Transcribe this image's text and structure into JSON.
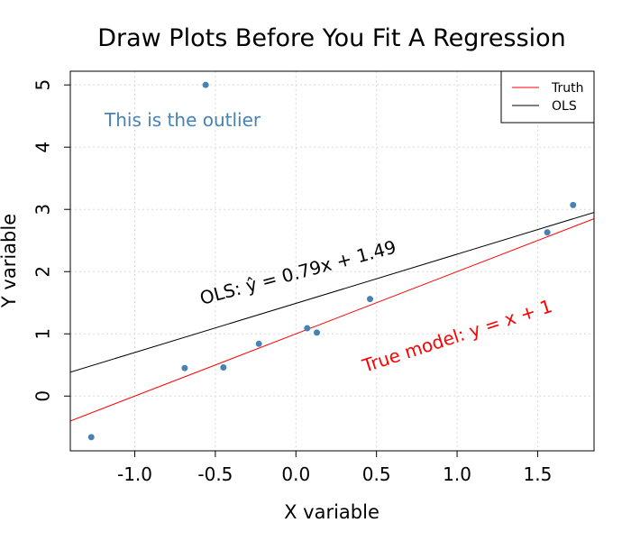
{
  "chart_data": {
    "type": "scatter",
    "title": "Draw Plots Before You Fit A Regression",
    "xlabel": "X variable",
    "ylabel": "Y variable",
    "xlim": [
      -1.4,
      1.85
    ],
    "ylim": [
      -0.88,
      5.22
    ],
    "xticks": [
      -1.0,
      -0.5,
      0.0,
      0.5,
      1.0,
      1.5
    ],
    "xtick_labels": [
      "-1.0",
      "-0.5",
      "0.0",
      "0.5",
      "1.0",
      "1.5"
    ],
    "yticks": [
      0,
      1,
      2,
      3,
      4,
      5
    ],
    "ytick_labels": [
      "0",
      "1",
      "2",
      "3",
      "4",
      "5"
    ],
    "grid": true,
    "points": {
      "color": "#4682b4",
      "x": [
        -1.27,
        -0.69,
        -0.45,
        -0.23,
        0.07,
        0.13,
        0.46,
        1.56,
        1.72,
        -0.56
      ],
      "y": [
        -0.66,
        0.45,
        0.46,
        0.84,
        1.09,
        1.02,
        1.56,
        2.63,
        3.07,
        5.0
      ]
    },
    "lines": [
      {
        "name": "Truth",
        "color": "#ff0000",
        "intercept": 1.0,
        "slope": 1.0
      },
      {
        "name": "OLS",
        "color": "#000000",
        "intercept": 1.49,
        "slope": 0.79
      }
    ],
    "legend": {
      "position": "top-right",
      "entries": [
        "Truth",
        "OLS"
      ]
    },
    "annotations": [
      {
        "id": "outlier-label",
        "text": "This is the outlier",
        "color": "#4682b4"
      },
      {
        "id": "ols-label",
        "text": "OLS: ŷ = 0.79x + 1.49",
        "color": "#000000"
      },
      {
        "id": "truth-label",
        "text": "True model: y = x + 1",
        "color": "#ff0000"
      }
    ]
  }
}
